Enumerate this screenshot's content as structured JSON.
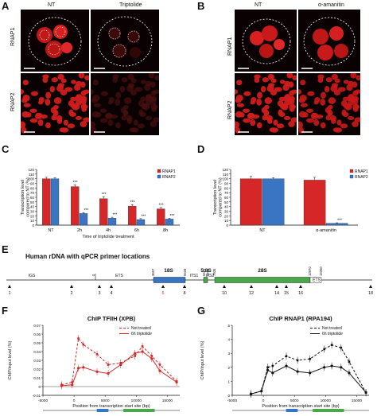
{
  "panels": {
    "A": {
      "letter": "A",
      "col_labels": [
        "NT",
        "Triptolide"
      ],
      "row_labels": [
        "RNAP1",
        "RNAP2"
      ]
    },
    "B": {
      "letter": "B",
      "col_labels": [
        "NT",
        "α-amanitin"
      ],
      "row_labels": [
        "RNAP1",
        "RNAP2"
      ]
    },
    "C": {
      "letter": "C"
    },
    "D": {
      "letter": "D"
    },
    "E": {
      "letter": "E",
      "heading": "Human rDNA with qPCR primer locations",
      "region_labels": [
        "IGS",
        "ETS",
        "18S",
        "ITS1",
        "5.8S",
        "ITS2",
        "28S",
        "ETS"
      ],
      "top_ticks": [
        "0",
        "3657",
        "5528",
        "6623",
        "6780",
        "7935",
        "12970",
        "13350"
      ],
      "primer_labels": [
        "1",
        "2",
        "3",
        "4",
        "6",
        "8",
        "10",
        "12",
        "14",
        "15",
        "16",
        "18"
      ]
    },
    "F": {
      "letter": "F"
    },
    "G": {
      "letter": "G"
    }
  },
  "chart_data": [
    {
      "panel": "C",
      "type": "bar",
      "title": "",
      "xlabel": "Time of triptolide treatment",
      "ylabel": "Transcription level compared to NT (%)",
      "categories": [
        "NT",
        "2h",
        "4h",
        "6h",
        "8h"
      ],
      "series": [
        {
          "name": "RNAP1",
          "color": "#d62728",
          "values": [
            100,
            83,
            57,
            41,
            35
          ],
          "errors": [
            3,
            4,
            4,
            3,
            3
          ]
        },
        {
          "name": "RNAP2",
          "color": "#3a75c4",
          "values": [
            100,
            25,
            15,
            12,
            13
          ],
          "errors": [
            2,
            2,
            2,
            2,
            2
          ]
        }
      ],
      "significance": [
        "",
        "***",
        "***",
        "***",
        "***"
      ],
      "significance2": [
        "",
        "***",
        "***",
        "***",
        "***"
      ],
      "ylim": [
        0,
        120
      ],
      "yticks": [
        0,
        10,
        20,
        30,
        40,
        50,
        60,
        70,
        80,
        90,
        100,
        110,
        120
      ],
      "legend": "top-right"
    },
    {
      "panel": "D",
      "type": "bar",
      "title": "",
      "xlabel": "",
      "ylabel": "Transcription level compared to NT (%)",
      "categories": [
        "NT",
        "α-amanitin"
      ],
      "series": [
        {
          "name": "RNAP1",
          "color": "#d62728",
          "values": [
            100,
            97
          ],
          "errors": [
            5,
            6
          ]
        },
        {
          "name": "RNAP2",
          "color": "#3a75c4",
          "values": [
            100,
            4
          ],
          "errors": [
            2,
            1
          ]
        }
      ],
      "significance2": [
        "",
        "***"
      ],
      "ylim": [
        0,
        120
      ],
      "yticks": [
        0,
        10,
        20,
        30,
        40,
        50,
        60,
        70,
        80,
        90,
        100,
        110,
        120
      ],
      "legend": "top-right"
    },
    {
      "panel": "F",
      "type": "line",
      "title": "ChIP TFIIH (XPB)",
      "xlabel": "Position from transcription start site (bp)",
      "ylabel": "ChIP/input level (%)",
      "xlim": [
        -5000,
        17000
      ],
      "xticks": [
        -5000,
        0,
        5000,
        10000,
        15000
      ],
      "ylim": [
        -0.01,
        0.07
      ],
      "yticks": [
        -0.01,
        0,
        0.01,
        0.02,
        0.03,
        0.04,
        0.05,
        0.06,
        0.07
      ],
      "series": [
        {
          "name": "Not treated",
          "style": "dashed",
          "color": "#d62728",
          "x": [
            -2000,
            -300,
            700,
            1500,
            3700,
            5500,
            7500,
            9800,
            11000,
            12500,
            13800,
            16500
          ],
          "y": [
            0.002,
            0.005,
            0.055,
            0.048,
            0.037,
            0.025,
            0.027,
            0.035,
            0.046,
            0.035,
            0.025,
            0.006
          ]
        },
        {
          "name": "6h triptolide",
          "style": "solid",
          "color": "#d62728",
          "x": [
            -2000,
            -300,
            700,
            1500,
            3700,
            5500,
            7500,
            9800,
            11000,
            12500,
            13800,
            16500
          ],
          "y": [
            0.001,
            0.002,
            0.021,
            0.022,
            0.017,
            0.015,
            0.025,
            0.038,
            0.04,
            0.032,
            0.018,
            0.005
          ]
        }
      ],
      "legend": "top-right"
    },
    {
      "panel": "G",
      "type": "line",
      "title": "ChIP RNAP1 (RPA194)",
      "xlabel": "Position from transcription start site (bp)",
      "ylabel": "ChIP/input level (%)",
      "xlim": [
        -5000,
        17000
      ],
      "xticks": [
        -5000,
        0,
        5000,
        10000,
        15000
      ],
      "ylim": [
        0,
        5
      ],
      "yticks": [
        0,
        1,
        2,
        3,
        4,
        5
      ],
      "series": [
        {
          "name": "Not treated",
          "style": "dashed",
          "color": "#111111",
          "x": [
            -2000,
            -300,
            700,
            1500,
            3700,
            5500,
            7500,
            9800,
            11000,
            12500,
            13800,
            16500
          ],
          "y": [
            0.1,
            0.3,
            2.0,
            2.1,
            2.8,
            2.5,
            2.6,
            3.3,
            3.6,
            3.4,
            2.4,
            0.2
          ]
        },
        {
          "name": "6h triptolide",
          "style": "solid",
          "color": "#111111",
          "x": [
            -2000,
            -300,
            700,
            1500,
            3700,
            5500,
            7500,
            9800,
            11000,
            12500,
            13800,
            16500
          ],
          "y": [
            0.1,
            0.3,
            1.8,
            1.6,
            2.1,
            1.7,
            1.6,
            2.0,
            2.1,
            2.0,
            1.6,
            0.2
          ]
        }
      ],
      "legend": "top-right"
    }
  ]
}
